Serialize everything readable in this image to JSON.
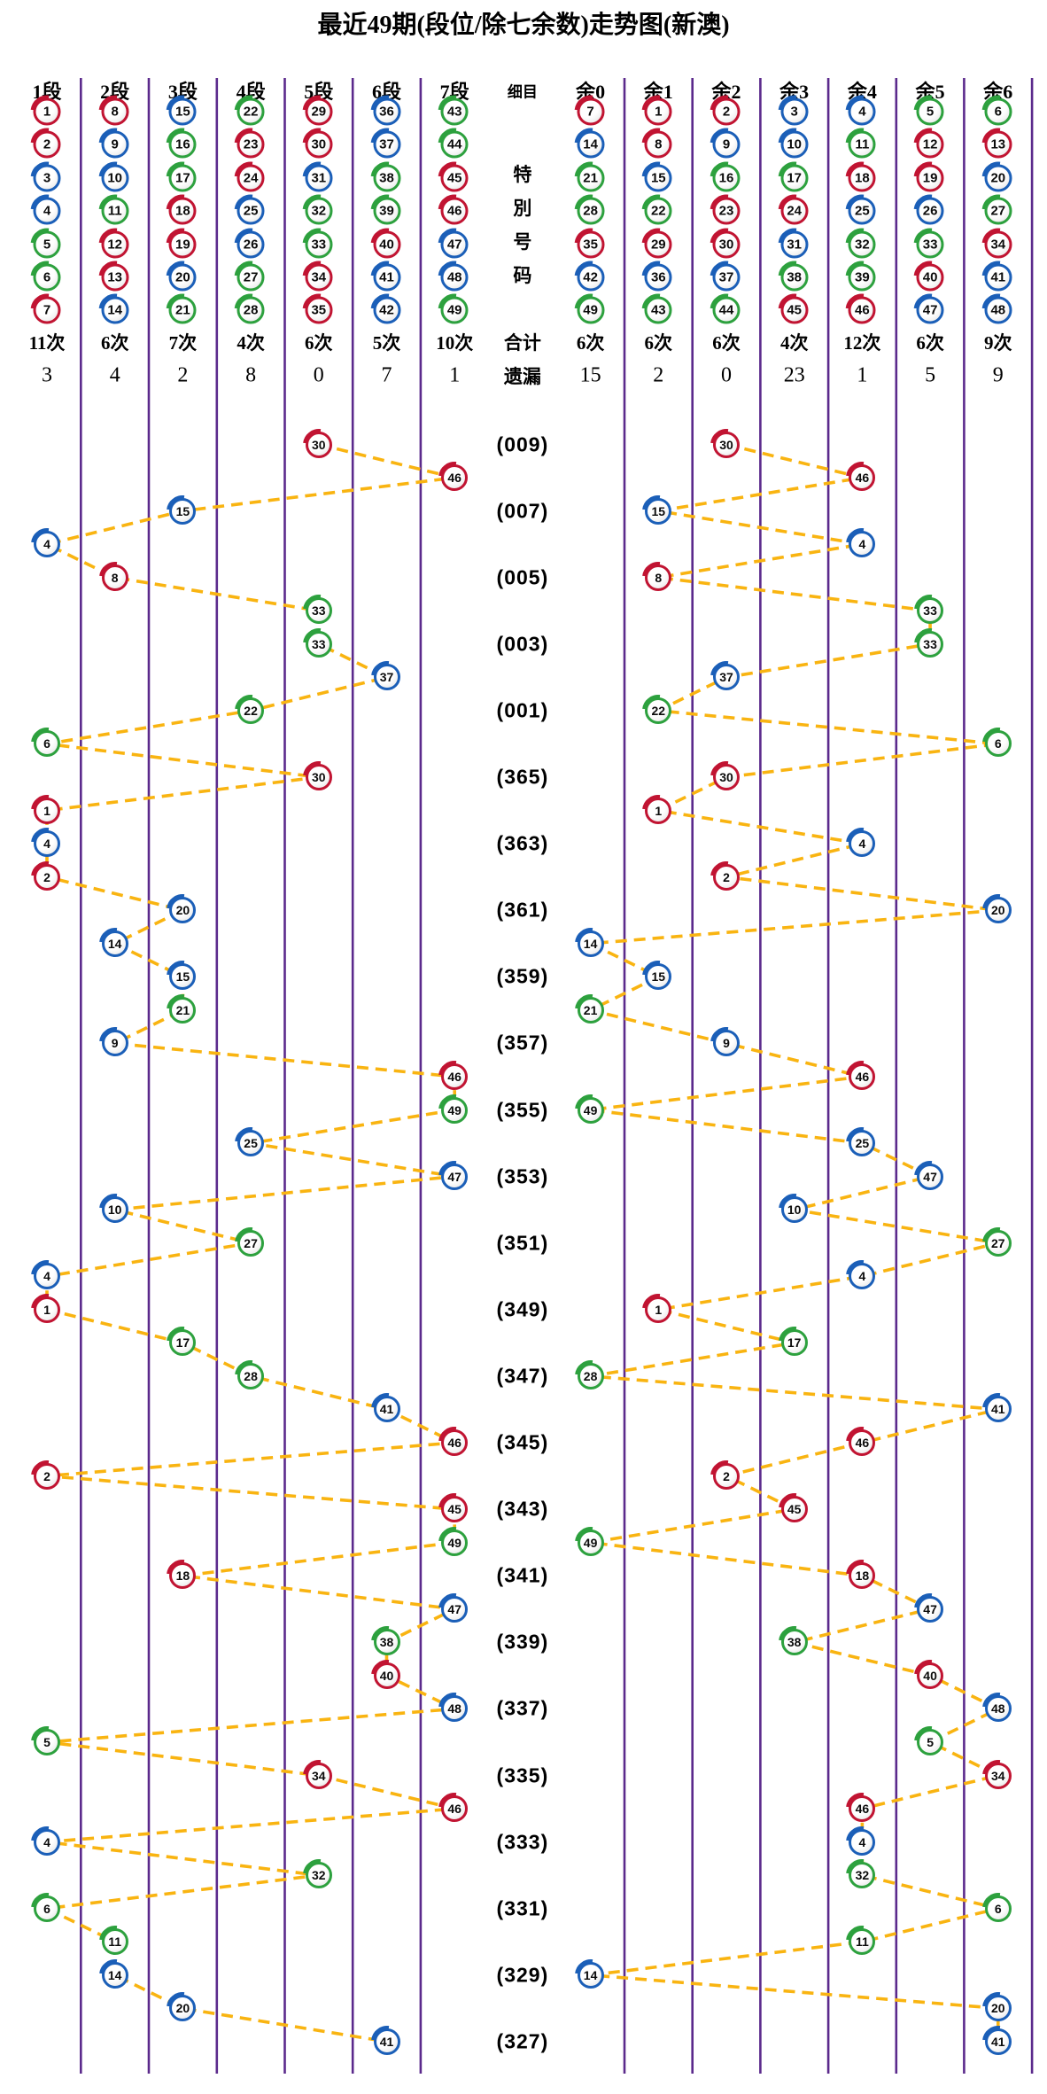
{
  "title": "最近49期(段位/除七余数)走势图(新澳)",
  "headers": [
    "1段",
    "2段",
    "3段",
    "4段",
    "5段",
    "6段",
    "7段",
    "细目",
    "余0",
    "余1",
    "余2",
    "余3",
    "余4",
    "余5",
    "余6"
  ],
  "special_label": "特別号码",
  "grid": {
    "segment_columns": [
      [
        1,
        2,
        3,
        4,
        5,
        6,
        7
      ],
      [
        8,
        9,
        10,
        11,
        12,
        13,
        14
      ],
      [
        15,
        16,
        17,
        18,
        19,
        20,
        21
      ],
      [
        22,
        23,
        24,
        25,
        26,
        27,
        28
      ],
      [
        29,
        30,
        31,
        32,
        33,
        34,
        35
      ],
      [
        36,
        37,
        38,
        39,
        40,
        41,
        42
      ],
      [
        43,
        44,
        45,
        46,
        47,
        48,
        49
      ]
    ],
    "remainder_columns": [
      [
        7,
        14,
        21,
        28,
        35,
        42,
        49
      ],
      [
        1,
        8,
        15,
        22,
        29,
        36,
        43
      ],
      [
        2,
        9,
        16,
        23,
        30,
        37,
        44
      ],
      [
        3,
        10,
        17,
        24,
        31,
        38,
        45
      ],
      [
        4,
        11,
        18,
        25,
        32,
        39,
        46
      ],
      [
        5,
        12,
        19,
        26,
        33,
        40,
        47
      ],
      [
        6,
        13,
        20,
        27,
        34,
        41,
        48
      ]
    ]
  },
  "stats": {
    "counts_label_middle": "合计",
    "missing_label_middle": "遗漏",
    "segment_counts": [
      "11次",
      "6次",
      "7次",
      "4次",
      "6次",
      "5次",
      "10次"
    ],
    "remainder_counts": [
      "6次",
      "6次",
      "6次",
      "4次",
      "12次",
      "6次",
      "9次"
    ],
    "segment_missing": [
      "3",
      "4",
      "2",
      "8",
      "0",
      "7",
      "1"
    ],
    "remainder_missing": [
      "15",
      "2",
      "0",
      "23",
      "1",
      "5",
      "9"
    ]
  },
  "chart_data": {
    "type": "scatter",
    "title": "最近49期(段位/除七余数)走势图(新澳)",
    "left_axis": "段位 1段-7段 (ceil(号码/7))",
    "right_axis": "除七余数 余0-余6 (号码 mod 7)",
    "rows": 49,
    "order": "newest period at top, labels on every second row",
    "period_labels": [
      "(009)",
      "(007)",
      "(005)",
      "(003)",
      "(001)",
      "(365)",
      "(363)",
      "(361)",
      "(359)",
      "(357)",
      "(355)",
      "(353)",
      "(351)",
      "(349)",
      "(347)",
      "(345)",
      "(343)",
      "(341)",
      "(339)",
      "(337)",
      "(335)",
      "(333)",
      "(331)",
      "(329)",
      "(327)"
    ],
    "special_numbers": [
      30,
      46,
      15,
      4,
      8,
      33,
      33,
      37,
      22,
      6,
      30,
      1,
      4,
      2,
      20,
      14,
      15,
      21,
      9,
      46,
      49,
      25,
      47,
      10,
      27,
      4,
      1,
      17,
      28,
      41,
      46,
      2,
      45,
      49,
      18,
      47,
      38,
      40,
      48,
      5,
      34,
      46,
      4,
      32,
      6,
      11,
      14,
      20,
      41
    ]
  },
  "ball_colors": {
    "red_numbers": [
      1,
      2,
      7,
      8,
      12,
      13,
      18,
      19,
      23,
      24,
      29,
      30,
      34,
      35,
      40,
      45,
      46
    ],
    "blue_numbers": [
      3,
      4,
      9,
      10,
      14,
      15,
      20,
      25,
      26,
      31,
      36,
      37,
      41,
      42,
      47,
      48
    ],
    "green_numbers": [
      5,
      6,
      11,
      16,
      17,
      21,
      22,
      27,
      28,
      32,
      33,
      38,
      39,
      43,
      44,
      49
    ]
  },
  "colors": {
    "red": "#c11432",
    "blue": "#1b5fb8",
    "green": "#2da13e",
    "divider": "#5b2a8c",
    "connector": "#f9b411",
    "text": "#000000"
  }
}
